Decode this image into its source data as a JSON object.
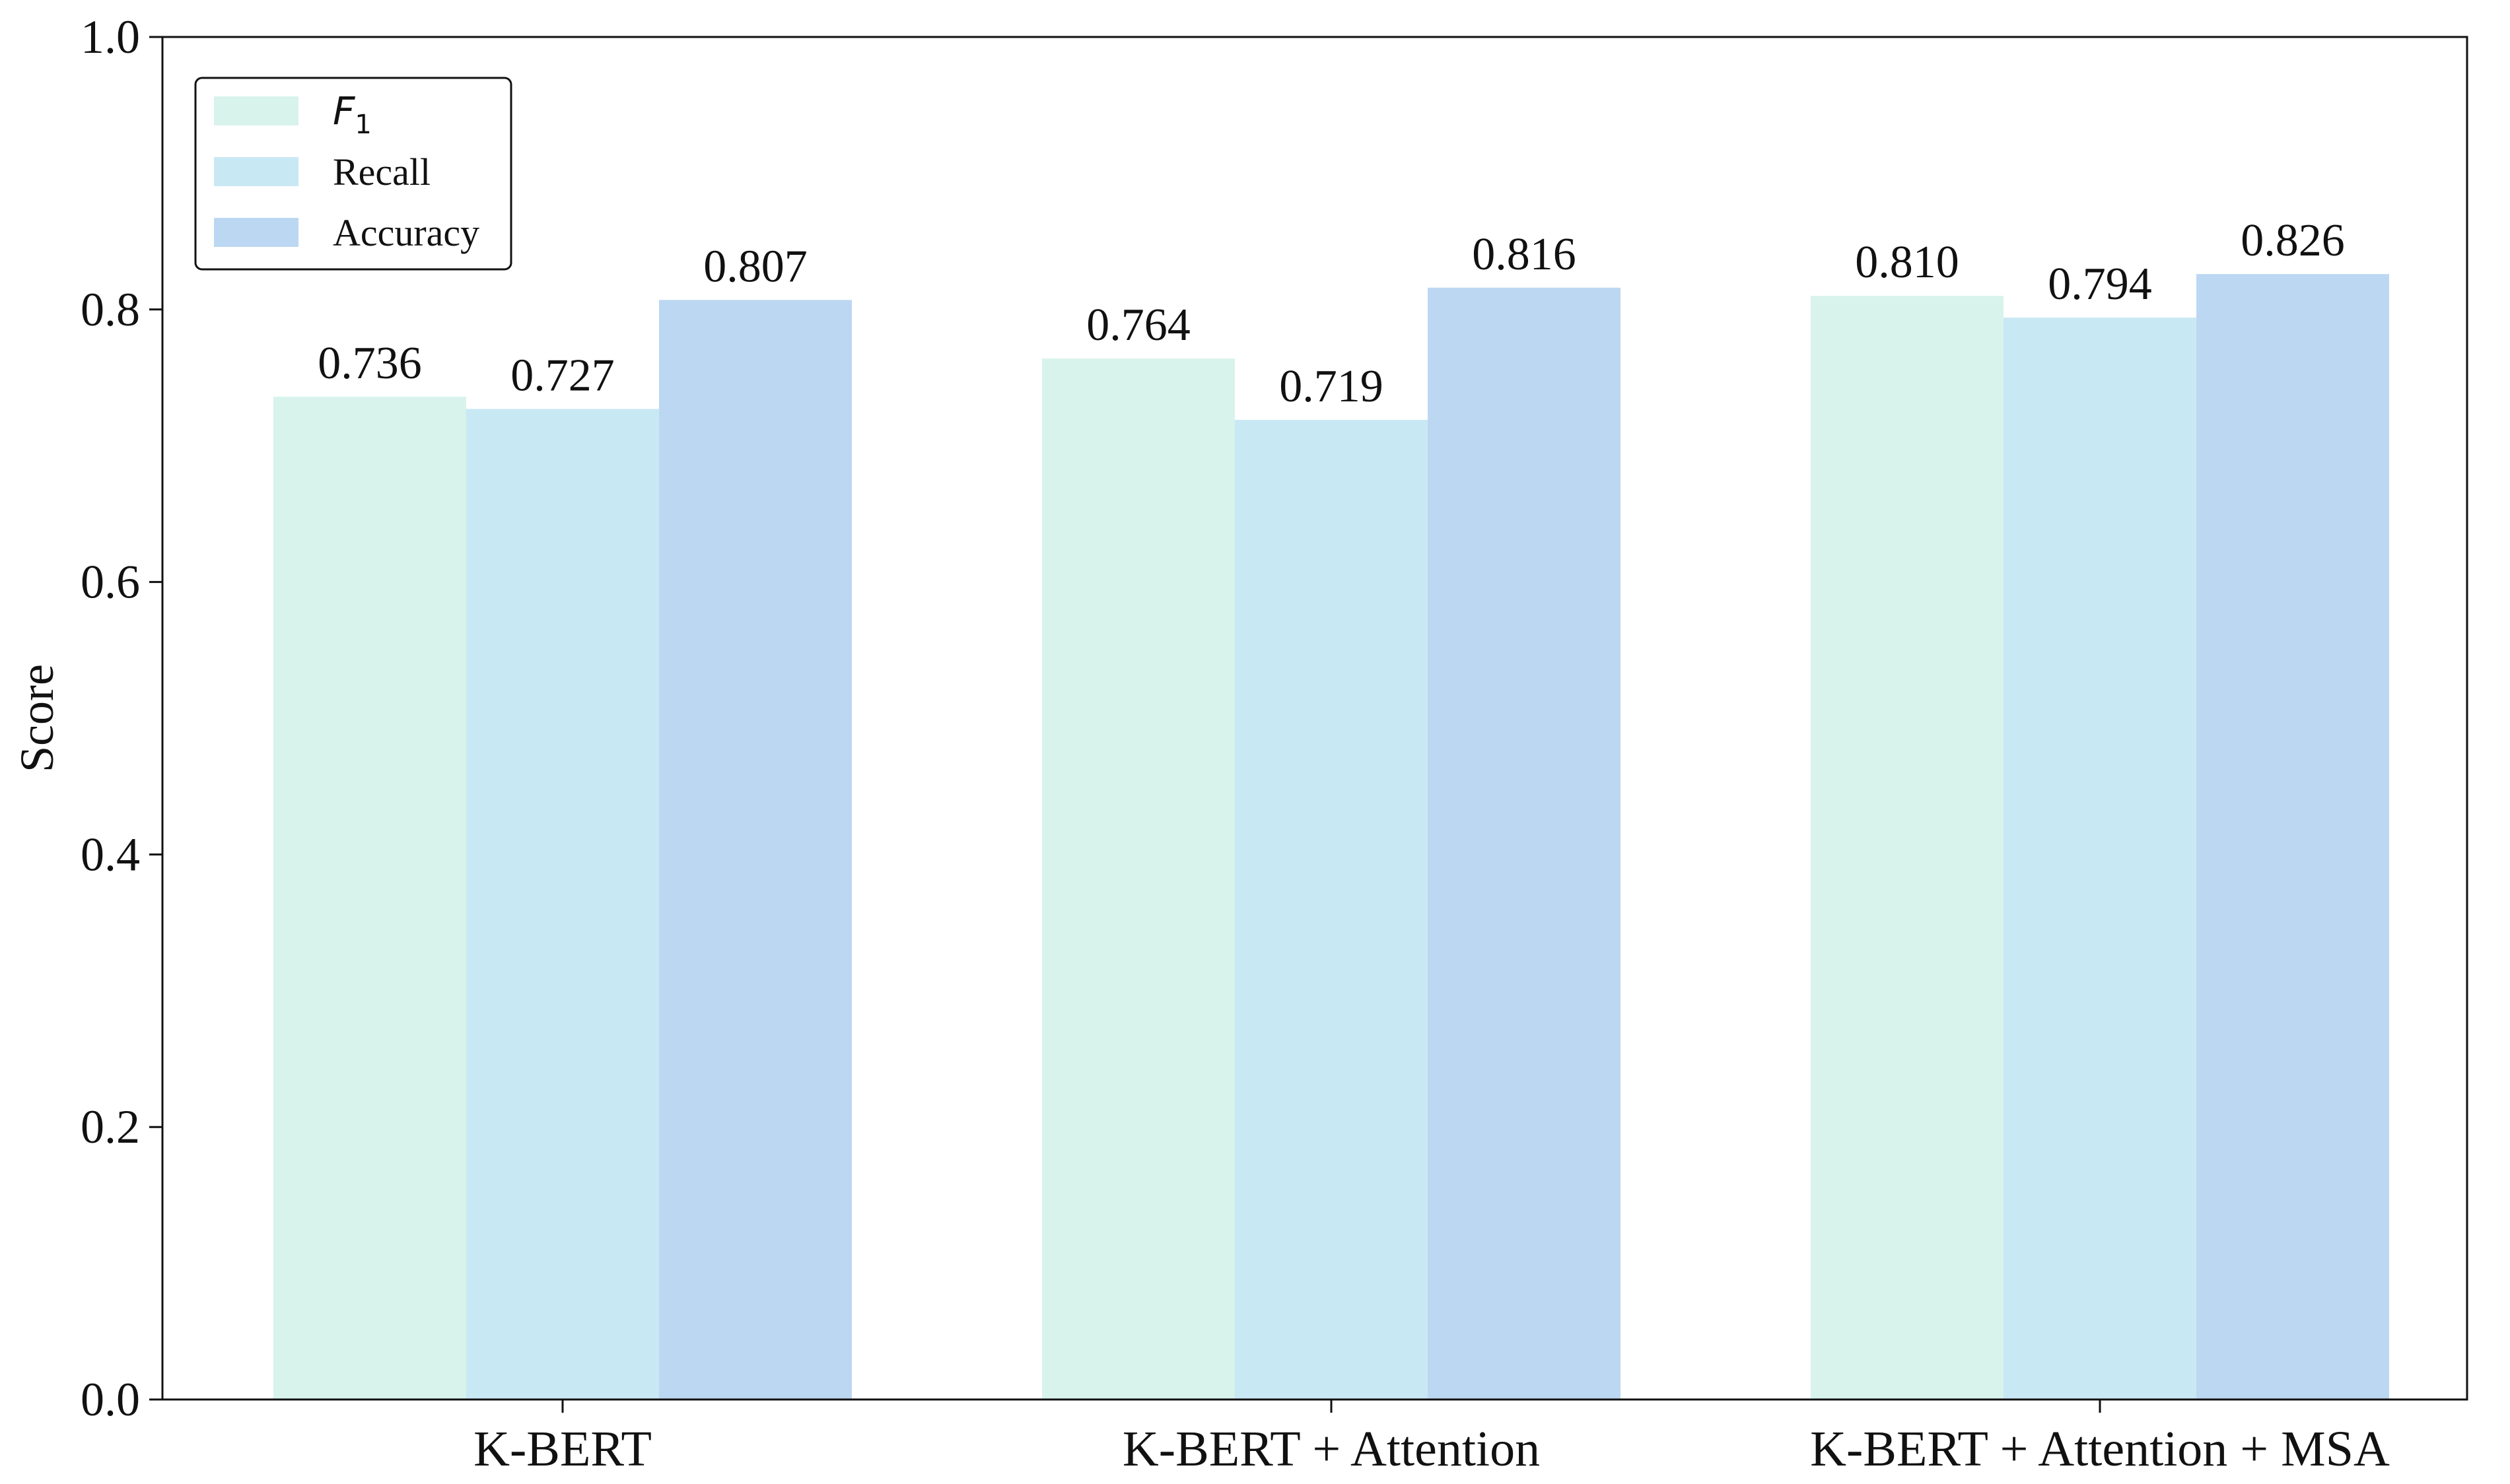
{
  "chart_data": {
    "type": "bar",
    "categories": [
      "K-BERT",
      "K-BERT + Attention",
      "K-BERT + Attention + MSA"
    ],
    "series": [
      {
        "name": "F1",
        "name_main": "F",
        "name_sub": "1",
        "color": "#d8f3ec",
        "values": [
          0.736,
          0.764,
          0.81
        ]
      },
      {
        "name": "Recall",
        "color": "#c8e8f4",
        "values": [
          0.727,
          0.719,
          0.794
        ]
      },
      {
        "name": "Accuracy",
        "color": "#bcd7f1",
        "values": [
          0.807,
          0.816,
          0.826
        ]
      }
    ],
    "value_labels": [
      [
        "0.736",
        "0.764",
        "0.810"
      ],
      [
        "0.727",
        "0.719",
        "0.794"
      ],
      [
        "0.807",
        "0.816",
        "0.826"
      ]
    ],
    "xlabel": "",
    "ylabel": "Score",
    "ylim": [
      0,
      1.0
    ],
    "yticks": [
      0.0,
      0.2,
      0.4,
      0.6,
      0.8,
      1.0
    ],
    "ytick_labels": [
      "0.0",
      "0.2",
      "0.4",
      "0.6",
      "0.8",
      "1.0"
    ],
    "grid": false,
    "legend_position": "top-left"
  }
}
